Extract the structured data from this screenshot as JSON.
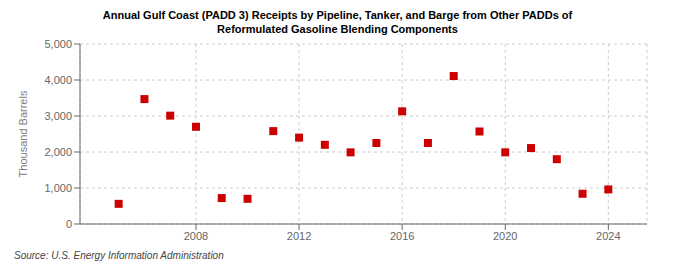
{
  "chart_data": {
    "type": "scatter",
    "title": "Annual Gulf Coast (PADD 3) Receipts by Pipeline, Tanker, and Barge from Other PADDs of\nReformulated Gasoline Blending Components",
    "y_label": "Thousand Barrels",
    "annotations": [
      "Source: U.S. Energy Information Administration"
    ],
    "x": [
      2005,
      2006,
      2007,
      2008,
      2009,
      2010,
      2011,
      2012,
      2013,
      2014,
      2015,
      2016,
      2017,
      2018,
      2019,
      2020,
      2021,
      2022,
      2023,
      2024
    ],
    "values": [
      560,
      3470,
      3010,
      2700,
      720,
      700,
      2580,
      2400,
      2200,
      1990,
      2250,
      3130,
      2250,
      4110,
      2570,
      1990,
      2110,
      1800,
      840,
      960
    ],
    "color": "#cc0000",
    "marker": "square",
    "xlim": [
      2003.5,
      2025.5
    ],
    "xticks": [
      2008,
      2012,
      2016,
      2020,
      2024
    ],
    "ylim": [
      0,
      5000
    ],
    "yticks": [
      0,
      {
        "value": 1000,
        "label": "1,000"
      },
      {
        "value": 2000,
        "label": "2,000"
      },
      {
        "value": 3000,
        "label": "3,000"
      },
      {
        "value": 4000,
        "label": "4,000"
      },
      {
        "value": 5000,
        "label": "5,000"
      }
    ],
    "grid": true
  }
}
